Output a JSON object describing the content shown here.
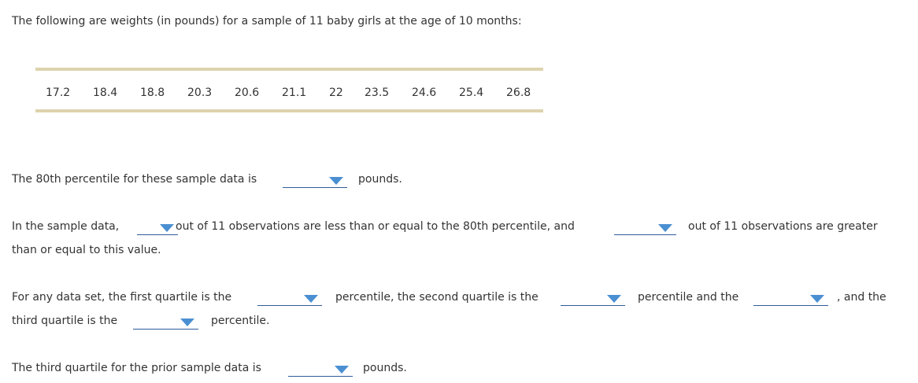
{
  "intro": "The following are weights (in pounds) for a sample of 11 baby girls at the age of 10 months:",
  "weights": [
    "17.2",
    "18.4",
    "18.8",
    "20.3",
    "20.6",
    "21.1",
    "22",
    "23.5",
    "24.6",
    "25.4",
    "26.8"
  ],
  "q1": {
    "before": "The 80th percentile for these sample data is",
    "after": "pounds."
  },
  "q2": {
    "before": "In the sample data,",
    "middle": "out of 11 observations are less than or equal to the 80th percentile, and",
    "after": "out of 11 observations are greater",
    "line2": "than or equal to this value."
  },
  "q3": {
    "before": "For any data set, the first quartile is the",
    "middle1": "percentile, the second quartile is the",
    "middle2": "percentile and the",
    "after": ", and the",
    "line2_before": "third quartile is the",
    "line2_after": "percentile."
  },
  "q4": {
    "before": "The third quartile for the prior sample data is",
    "after": "pounds."
  },
  "dropdowns": {
    "percentile_80_value": "",
    "count_less_equal": "",
    "count_greater_equal": "",
    "first_quartile_percentile": "",
    "second_quartile_percentile": "",
    "third_quartile_percentile_a": "",
    "third_quartile_percentile_b": "",
    "third_quartile_value": ""
  },
  "colors": {
    "table_border": "#ddd3ad",
    "dropdown_underline": "#2e5c99",
    "dropdown_caret": "#4a8fd1"
  }
}
